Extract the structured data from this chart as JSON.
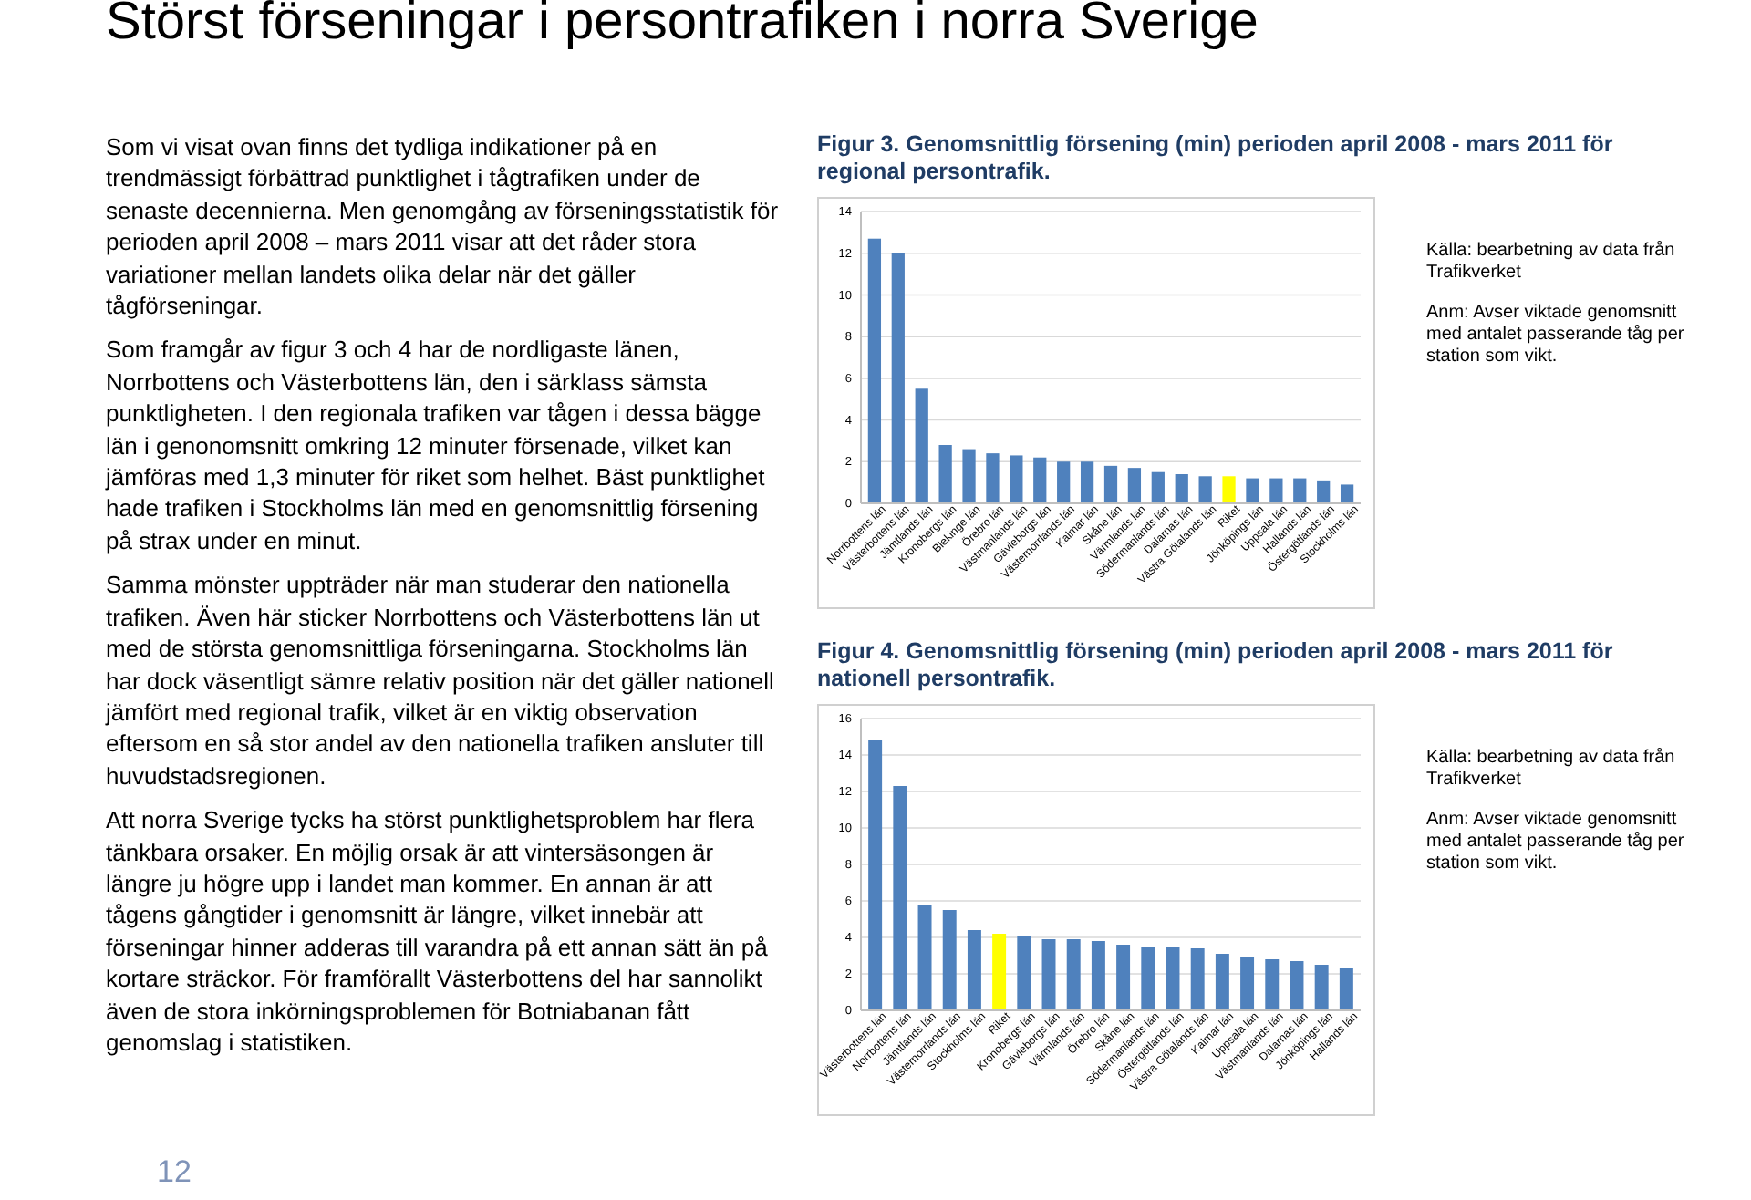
{
  "chart_data": [
    {
      "type": "other",
      "title": "Störst förseningar i persontrafiken i norra Sverige",
      "annotations": [
        "Som vi visat ovan finns det tydliga indikationer på en trendmässigt förbättrad punktlighet i tågtrafiken under de senaste decennierna. Men genomgång av förseningsstatistik för perioden april 2008 – mars 2011 visar att det råder stora variationer mellan landets olika delar när det gäller tågförseningar.",
        "Som framgår av figur 3 och 4 har de nordligaste länen, Norrbottens och Västerbottens län, den i särklass sämsta punktligheten. I den regionala trafiken var tågen i dessa bägge län i genonomsnitt omkring 12 minuter försenade, vilket kan jämföras med 1,3 minuter för riket som helhet. Bäst punktlighet hade trafiken i Stockholms län med en genomsnittlig försening på strax under en minut.",
        "Samma mönster uppträder när man studerar den nationella trafiken. Även här sticker Norrbottens och Västerbottens län ut med de största genomsnittliga förseningarna. Stockholms län har dock väsentligt sämre relativ position när det gäller nationell jämfört med regional trafik, vilket är en viktig observation eftersom en så stor andel av den nationella trafiken ansluter till huvudstadsregionen.",
        "Att norra Sverige tycks ha störst punktlighetsproblem har flera tänkbara orsaker. En möjlig orsak är att vintersäsongen är längre ju högre upp i landet man kommer. En annan är att tågens gångtider i genomsnitt är längre, vilket innebär att förseningar hinner adderas till varandra på ett annan sätt än på kortare sträckor. För framförallt Västerbottens del har sannolikt även de stora inkörningsproblemen för Botniabanan fått genomslag i statistiken.",
        "12"
      ]
    },
    {
      "type": "bar",
      "title": "Figur 3. Genomsnittlig försening (min) perioden april 2008 - mars 2011 för regional persontrafik.",
      "categories": [
        "Norrbottens län",
        "Västerbottens län",
        "Jämtlands län",
        "Kronobergs län",
        "Blekinge län",
        "Örebro län",
        "Västmanlands län",
        "Gävleborgs län",
        "Västernorrlands län",
        "Kalmar län",
        "Skåne län",
        "Värmlands län",
        "Södermanlands län",
        "Dalarnas län",
        "Västra Götalands län",
        "Riket",
        "Jönköpings län",
        "Uppsala län",
        "Hallands län",
        "Östergötlands län",
        "Stockholms län"
      ],
      "values": [
        12.7,
        12.0,
        5.5,
        2.8,
        2.6,
        2.4,
        2.3,
        2.2,
        2.0,
        2.0,
        1.8,
        1.7,
        1.5,
        1.4,
        1.3,
        1.3,
        1.2,
        1.2,
        1.2,
        1.1,
        0.9
      ],
      "colors": [
        "#4f81bd",
        "#4f81bd",
        "#4f81bd",
        "#4f81bd",
        "#4f81bd",
        "#4f81bd",
        "#4f81bd",
        "#4f81bd",
        "#4f81bd",
        "#4f81bd",
        "#4f81bd",
        "#4f81bd",
        "#4f81bd",
        "#4f81bd",
        "#4f81bd",
        "#ffff00",
        "#4f81bd",
        "#4f81bd",
        "#4f81bd",
        "#4f81bd",
        "#4f81bd"
      ],
      "ylim": [
        0,
        14
      ],
      "yticks": [
        0,
        2,
        4,
        6,
        8,
        10,
        12,
        14
      ],
      "grid": "y",
      "annotations": [
        "Källa: bearbetning av data från Trafikverket",
        "Anm: Avser viktade genomsnitt med antalet passerande tåg per station som vikt."
      ]
    },
    {
      "type": "bar",
      "title": "Figur 4. Genomsnittlig försening (min) perioden april 2008 - mars 2011 för nationell persontrafik.",
      "categories": [
        "Västerbottens län",
        "Norrbottens län",
        "Jämtlands län",
        "Västernorrlands län",
        "Stockholms län",
        "Riket",
        "Kronobergs län",
        "Gävleborgs län",
        "Värmlands län",
        "Örebro län",
        "Skåne län",
        "Södermanlands län",
        "Östergötlands län",
        "Västra Götalands län",
        "Kalmar län",
        "Uppsala län",
        "Västmanlands län",
        "Dalarnas län",
        "Jönköpings län",
        "Hallands län"
      ],
      "values": [
        14.8,
        12.3,
        5.8,
        5.5,
        4.4,
        4.2,
        4.1,
        3.9,
        3.9,
        3.8,
        3.6,
        3.5,
        3.5,
        3.4,
        3.1,
        2.9,
        2.8,
        2.7,
        2.5,
        2.3
      ],
      "colors": [
        "#4f81bd",
        "#4f81bd",
        "#4f81bd",
        "#4f81bd",
        "#4f81bd",
        "#ffff00",
        "#4f81bd",
        "#4f81bd",
        "#4f81bd",
        "#4f81bd",
        "#4f81bd",
        "#4f81bd",
        "#4f81bd",
        "#4f81bd",
        "#4f81bd",
        "#4f81bd",
        "#4f81bd",
        "#4f81bd",
        "#4f81bd",
        "#4f81bd"
      ],
      "ylim": [
        0,
        16
      ],
      "yticks": [
        0,
        2,
        4,
        6,
        8,
        10,
        12,
        14,
        16
      ],
      "grid": "y",
      "annotations": [
        "Källa: bearbetning av data från Trafikverket",
        "Anm: Avser viktade genomsnitt med antalet passerande tåg per station som vikt."
      ]
    }
  ]
}
